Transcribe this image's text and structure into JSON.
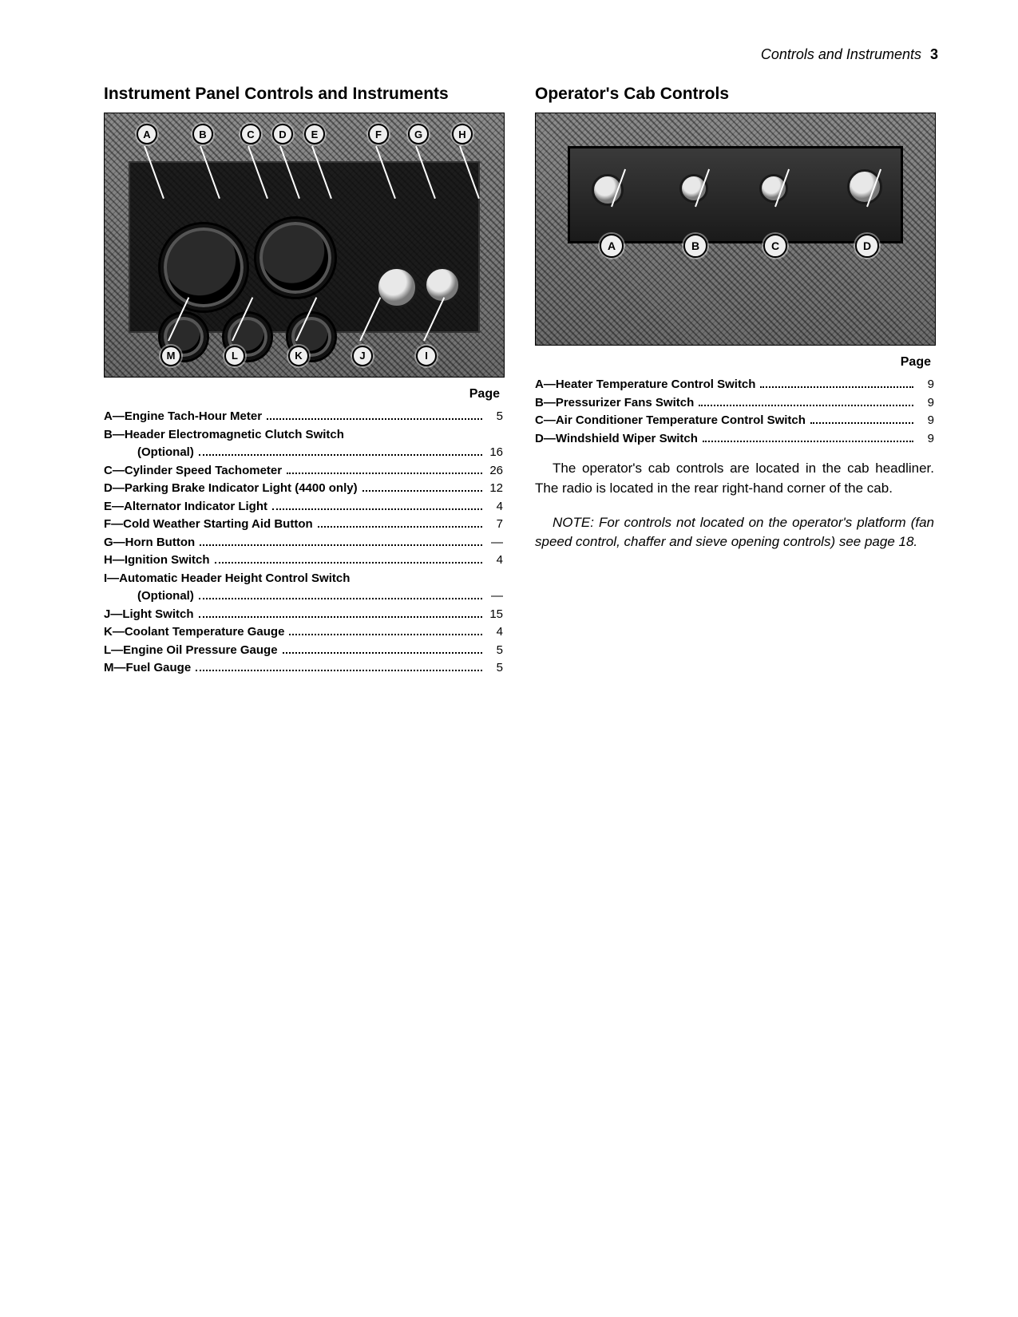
{
  "header": {
    "section": "Controls and Instruments",
    "page_number": "3"
  },
  "left": {
    "title": "Instrument Panel Controls and Instruments",
    "figure_code": "",
    "callouts_top": [
      "A",
      "B",
      "C",
      "D",
      "E",
      "F",
      "G",
      "H"
    ],
    "callouts_bottom": [
      "M",
      "L",
      "K",
      "J",
      "I"
    ],
    "page_label": "Page",
    "index": [
      {
        "letter": "A",
        "text": "Engine Tach-Hour Meter",
        "page": "5"
      },
      {
        "letter": "B",
        "text": "Header Electromagnetic Clutch Switch",
        "page": ""
      },
      {
        "letter": "",
        "text": "(Optional)",
        "page": "16",
        "sub": true
      },
      {
        "letter": "C",
        "text": "Cylinder Speed Tachometer",
        "page": "26"
      },
      {
        "letter": "D",
        "text": "Parking Brake Indicator Light (4400 only)",
        "page": "12"
      },
      {
        "letter": "E",
        "text": "Alternator Indicator Light",
        "page": "4"
      },
      {
        "letter": "F",
        "text": "Cold Weather Starting Aid Button",
        "page": "7"
      },
      {
        "letter": "G",
        "text": "Horn Button",
        "page": "—"
      },
      {
        "letter": "H",
        "text": "Ignition Switch",
        "page": "4"
      },
      {
        "letter": "I",
        "text": "Automatic Header Height Control Switch",
        "page": ""
      },
      {
        "letter": "",
        "text": "(Optional)",
        "page": "—",
        "sub": true
      },
      {
        "letter": "J",
        "text": "Light Switch",
        "page": "15"
      },
      {
        "letter": "K",
        "text": "Coolant Temperature Gauge",
        "page": "4"
      },
      {
        "letter": "L",
        "text": "Engine Oil Pressure Gauge",
        "page": "5"
      },
      {
        "letter": "M",
        "text": "Fuel Gauge",
        "page": "5"
      }
    ]
  },
  "right": {
    "title": "Operator's Cab Controls",
    "figure_code": "",
    "callouts": [
      "A",
      "B",
      "C",
      "D"
    ],
    "page_label": "Page",
    "index": [
      {
        "letter": "A",
        "text": "Heater Temperature Control Switch",
        "page": "9"
      },
      {
        "letter": "B",
        "text": "Pressurizer Fans Switch",
        "page": "9"
      },
      {
        "letter": "C",
        "text": "Air Conditioner Temperature Control Switch",
        "page": "9"
      },
      {
        "letter": "D",
        "text": "Windshield Wiper Switch",
        "page": "9"
      }
    ],
    "para1": "The operator's cab controls are located in the cab headliner. The radio is located in the rear right-hand corner of the cab.",
    "note": "NOTE: For controls not located on the operator's platform (fan speed control, chaffer and sieve opening controls) see page 18."
  }
}
